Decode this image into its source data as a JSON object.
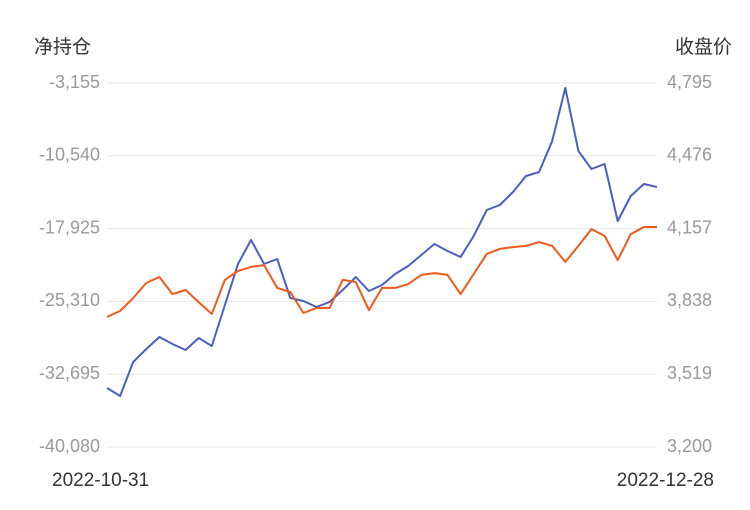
{
  "chart_data": {
    "type": "line",
    "y_title": "净持仓",
    "y2_title": "收盘价",
    "categories": [
      "2022-10-31",
      null,
      null,
      null,
      null,
      null,
      null,
      null,
      null,
      null,
      null,
      null,
      null,
      null,
      null,
      null,
      null,
      null,
      null,
      null,
      null,
      null,
      null,
      null,
      null,
      null,
      null,
      null,
      null,
      null,
      null,
      null,
      null,
      null,
      null,
      null,
      null,
      null,
      null,
      null,
      null,
      null,
      "2022-12-28"
    ],
    "series": [
      {
        "color": "#4a5fc1",
        "values": [
          -34094,
          -34906,
          -31457,
          -30138,
          -28921,
          -29631,
          -30240,
          -29022,
          -29834,
          -25675,
          -21516,
          -19081,
          -21516,
          -21008,
          -24965,
          -25269,
          -25878,
          -25370,
          -24153,
          -22834,
          -24255,
          -23646,
          -22530,
          -21719,
          -20603,
          -19487,
          -20197,
          -20806,
          -18675,
          -16038,
          -15531,
          -14212,
          -12589,
          -12183,
          -9039,
          -3662,
          -10053,
          -11879,
          -11372,
          -17154,
          -14618,
          -13400,
          -13705
        ]
      },
      {
        "color": "#f05a1a",
        "axis": "y2",
        "values": [
          3770,
          3796,
          3853,
          3919,
          3945,
          3870,
          3888,
          3835,
          3783,
          3932,
          3971,
          3989,
          3997,
          3897,
          3879,
          3787,
          3809,
          3809,
          3932,
          3923,
          3800,
          3897,
          3897,
          3914,
          3954,
          3962,
          3954,
          3870,
          3958,
          4046,
          4068,
          4076,
          4081,
          4098,
          4081,
          4011,
          4081,
          4155,
          4125,
          4019,
          4133,
          4164,
          4164
        ]
      }
    ],
    "ylim": [
      -40080,
      -3155
    ],
    "yticks": [
      {
        "value": -40080,
        "label": "-40,080"
      },
      {
        "value": -32695,
        "label": "-32,695"
      },
      {
        "value": -25310,
        "label": "-25,310"
      },
      {
        "value": -17925,
        "label": "-17,925"
      },
      {
        "value": -10540,
        "label": "-10,540"
      },
      {
        "value": -3155,
        "label": "-3,155"
      }
    ],
    "y2lim": [
      3200,
      4795
    ],
    "y2ticks": [
      {
        "value": 3200,
        "label": "3,200"
      },
      {
        "value": 3519,
        "label": "3,519"
      },
      {
        "value": 3838,
        "label": "3,838"
      },
      {
        "value": 4157,
        "label": "4,157"
      },
      {
        "value": 4476,
        "label": "4,476"
      },
      {
        "value": 4795,
        "label": "4,795"
      }
    ],
    "grid": true
  }
}
